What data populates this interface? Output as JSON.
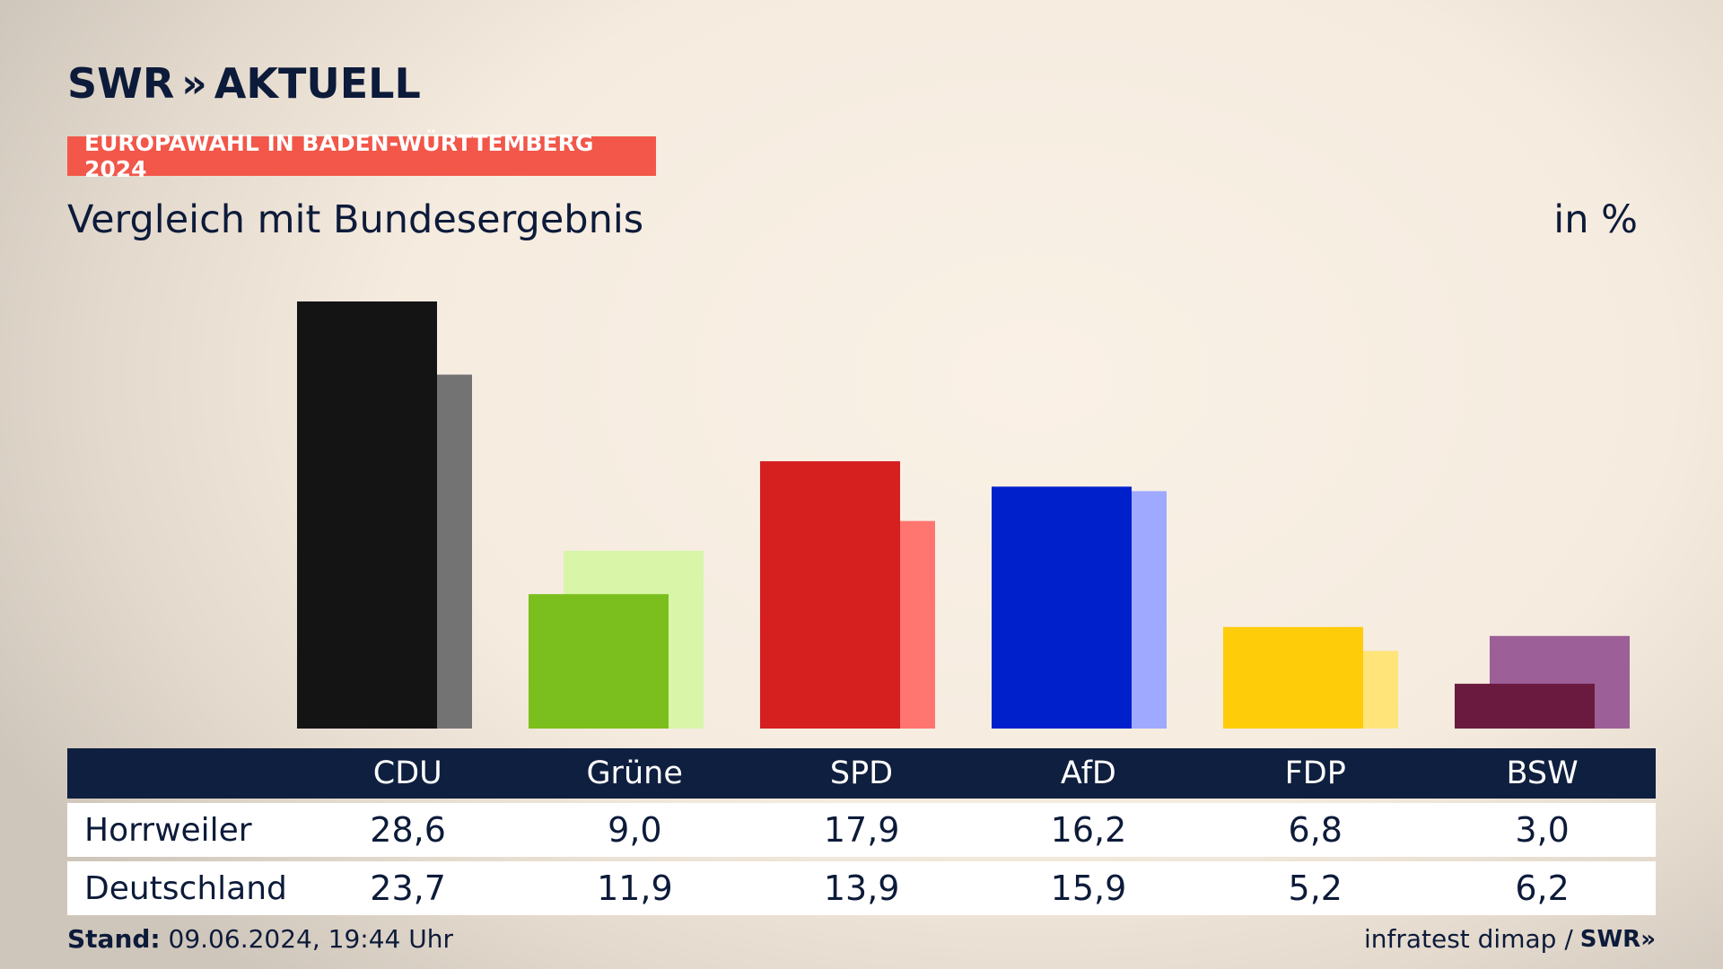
{
  "brand": {
    "name": "SWR",
    "chevrons": "»",
    "product": "AKTUELL"
  },
  "kicker": "EUROPAWAHL IN BADEN-WÜRTTEMBERG 2024",
  "title": "Vergleich mit Bundesergebnis",
  "unit": "in %",
  "footer": {
    "stand_label": "Stand:",
    "stand_value": "09.06.2024, 19:44 Uhr",
    "source": "infratest dimap /",
    "source_brand": "SWR»"
  },
  "chart_data": {
    "type": "bar",
    "categories": [
      "CDU",
      "Grüne",
      "SPD",
      "AfD",
      "FDP",
      "BSW"
    ],
    "series": [
      {
        "name": "Horrweiler",
        "values": [
          28.6,
          9.0,
          17.9,
          16.2,
          6.8,
          3.0
        ],
        "colors": [
          "#141414",
          "#7abf1d",
          "#d61f1f",
          "#0020cc",
          "#ffcc0a",
          "#6b1a3f"
        ]
      },
      {
        "name": "Deutschland",
        "values": [
          23.7,
          11.9,
          13.9,
          15.9,
          5.2,
          6.2
        ],
        "colors": [
          "#737373",
          "#d8f5a8",
          "#ff7570",
          "#9ea9ff",
          "#ffe47a",
          "#9c5f98"
        ]
      }
    ],
    "display_values": {
      "Horrweiler": [
        "28,6",
        "9,0",
        "17,9",
        "16,2",
        "6,8",
        "3,0"
      ],
      "Deutschland": [
        "23,7",
        "11,9",
        "13,9",
        "15,9",
        "5,2",
        "6,2"
      ]
    },
    "ylim": [
      0,
      28.6
    ]
  }
}
